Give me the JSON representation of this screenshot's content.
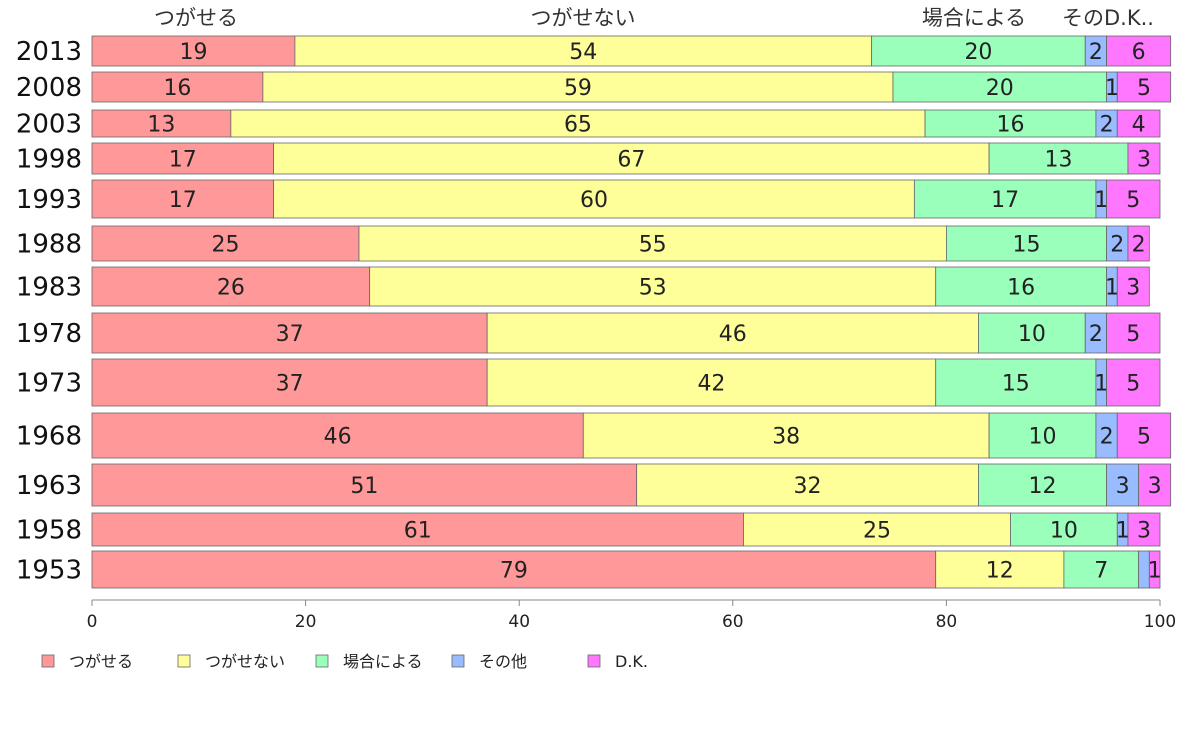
{
  "chart_data": {
    "type": "bar",
    "orientation": "horizontal",
    "stacked": true,
    "categories": [
      "2013",
      "2008",
      "2003",
      "1998",
      "1993",
      "1988",
      "1983",
      "1978",
      "1973",
      "1968",
      "1963",
      "1958",
      "1953"
    ],
    "series": [
      {
        "name": "つがせる",
        "color": "#ff9999",
        "values": [
          19,
          16,
          13,
          17,
          17,
          25,
          26,
          37,
          37,
          46,
          51,
          61,
          79
        ]
      },
      {
        "name": "つがせない",
        "color": "#ffff99",
        "values": [
          54,
          59,
          65,
          67,
          60,
          55,
          53,
          46,
          42,
          38,
          32,
          25,
          12
        ]
      },
      {
        "name": "場合による",
        "color": "#99ffbb",
        "values": [
          20,
          20,
          16,
          13,
          17,
          15,
          16,
          10,
          15,
          10,
          12,
          10,
          7
        ]
      },
      {
        "name": "その他",
        "color": "#99bbff",
        "values": [
          2,
          1,
          2,
          0,
          1,
          2,
          1,
          2,
          1,
          2,
          3,
          1,
          1
        ]
      },
      {
        "name": "D.K.",
        "color": "#ff77ff",
        "values": [
          6,
          5,
          4,
          3,
          5,
          2,
          3,
          5,
          5,
          5,
          3,
          3,
          1
        ]
      }
    ],
    "bar_labels": [
      [
        "19",
        "54",
        "20",
        "2",
        "6"
      ],
      [
        "16",
        "59",
        "20",
        "1",
        "5"
      ],
      [
        "13",
        "65",
        "16",
        "2",
        "4"
      ],
      [
        "17",
        "67",
        "13",
        "",
        "3"
      ],
      [
        "17",
        "60",
        "17",
        "1",
        "5"
      ],
      [
        "25",
        "55",
        "15",
        "2",
        "2"
      ],
      [
        "26",
        "53",
        "16",
        "1",
        "3"
      ],
      [
        "37",
        "46",
        "10",
        "2",
        "5"
      ],
      [
        "37",
        "42",
        "15",
        "1",
        "5"
      ],
      [
        "46",
        "38",
        "10",
        "2",
        "5"
      ],
      [
        "51",
        "32",
        "12",
        "3",
        "3"
      ],
      [
        "61",
        "25",
        "10",
        "1",
        "3"
      ],
      [
        "79",
        "12",
        "7",
        "",
        "1"
      ]
    ],
    "top_labels": [
      "つがせる",
      "つがせない",
      "場合による",
      "そのD.K.."
    ],
    "xlim": [
      0,
      100
    ],
    "xticks": [
      0,
      20,
      40,
      60,
      80,
      100
    ],
    "legend_position": "bottom-left",
    "grid": false,
    "xlabel": "",
    "ylabel": ""
  }
}
